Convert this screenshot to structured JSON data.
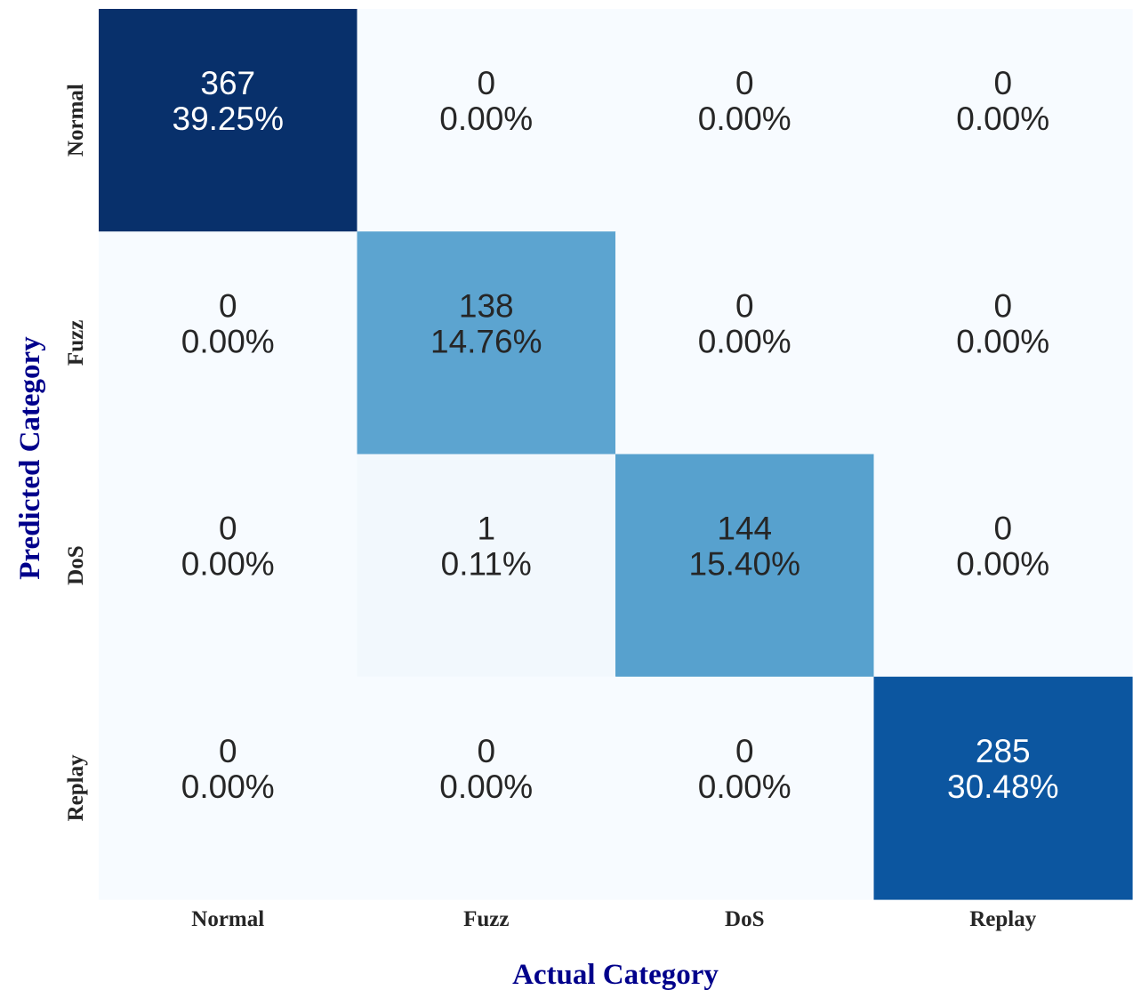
{
  "chart_data": {
    "type": "heatmap",
    "title": "",
    "xlabel": "Actual Category",
    "ylabel": "Predicted Category",
    "x_categories": [
      "Normal",
      "Fuzz",
      "DoS",
      "Replay"
    ],
    "y_categories": [
      "Normal",
      "Fuzz",
      "DoS",
      "Replay"
    ],
    "values": [
      [
        367,
        0,
        0,
        0
      ],
      [
        0,
        138,
        0,
        0
      ],
      [
        0,
        1,
        144,
        0
      ],
      [
        0,
        0,
        0,
        285
      ]
    ],
    "percent_labels": [
      [
        "39.25%",
        "0.00%",
        "0.00%",
        "0.00%"
      ],
      [
        "0.00%",
        "14.76%",
        "0.00%",
        "0.00%"
      ],
      [
        "0.00%",
        "0.11%",
        "15.40%",
        "0.00%"
      ],
      [
        "0.00%",
        "0.00%",
        "0.00%",
        "30.48%"
      ]
    ],
    "colormap": "Blues",
    "value_range": [
      0,
      367
    ],
    "colorbar": false,
    "grid": false
  }
}
